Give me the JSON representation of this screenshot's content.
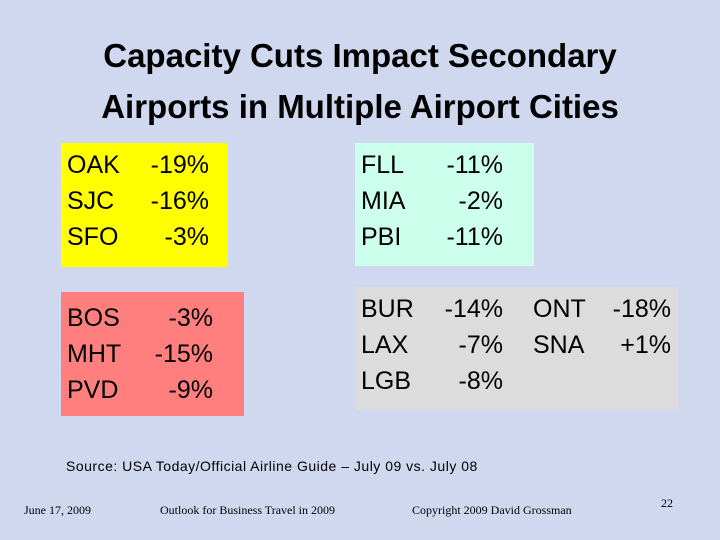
{
  "title": {
    "line1": "Capacity Cuts Impact Secondary",
    "line2": "Airports in Multiple Airport Cities"
  },
  "groups": {
    "sf": [
      {
        "code": "OAK",
        "pct": "-19%"
      },
      {
        "code": "SJC",
        "pct": "-16%"
      },
      {
        "code": "SFO",
        "pct": "-3%"
      }
    ],
    "fl": [
      {
        "code": "FLL",
        "pct": "-11%"
      },
      {
        "code": "MIA",
        "pct": "-2%"
      },
      {
        "code": "PBI",
        "pct": "-11%"
      }
    ],
    "bo": [
      {
        "code": "BOS",
        "pct": "-3%"
      },
      {
        "code": "MHT",
        "pct": "-15%"
      },
      {
        "code": "PVD",
        "pct": "-9%"
      }
    ],
    "la": [
      {
        "code": "BUR",
        "pct": "-14%"
      },
      {
        "code": "LAX",
        "pct": "-7%"
      },
      {
        "code": "LGB",
        "pct": "-8%"
      }
    ],
    "la_extra": [
      {
        "code": "ONT",
        "pct": "-18%"
      },
      {
        "code": "SNA",
        "pct": "+1%"
      }
    ]
  },
  "source": "Source: USA Today/Official Airline Guide – July 09 vs. July 08",
  "footer": {
    "date": "June 17, 2009",
    "event": "Outlook for Business Travel in 2009",
    "copyright": "Copyright 2009 David Grossman",
    "page": "22"
  },
  "colors": {
    "background": "#cfd8ee",
    "sf_box": "#ffff00",
    "fl_box": "#ccffec",
    "bo_box": "#ff7f7f",
    "la_box": "#dcdcdc"
  }
}
